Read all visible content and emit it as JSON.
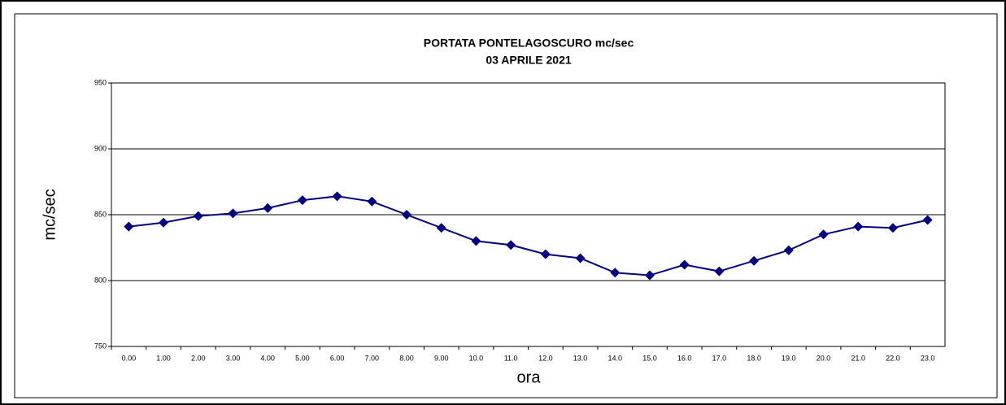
{
  "chart_data": {
    "type": "line",
    "title": "PORTATA PONTELAGOSCURO mc/sec",
    "subtitle": "03 APRILE 2021",
    "x_label": "ora",
    "y_label": "mc/sec",
    "categories": [
      "0.00",
      "1.00",
      "2.00",
      "3.00",
      "4.00",
      "5.00",
      "6.00",
      "7.00",
      "8.00",
      "9.00",
      "10.0",
      "11.0",
      "12.0",
      "13.0",
      "14.0",
      "15.0",
      "16.0",
      "17.0",
      "18.0",
      "19.0",
      "20.0",
      "21.0",
      "22.0",
      "23.0"
    ],
    "values": [
      841,
      844,
      849,
      851,
      855,
      861,
      864,
      860,
      850,
      840,
      830,
      827,
      820,
      817,
      806,
      804,
      812,
      807,
      815,
      823,
      835,
      841,
      840,
      846
    ],
    "color": "#000080",
    "ylim": [
      750,
      950
    ],
    "yticks": [
      750,
      800,
      850,
      900,
      950
    ],
    "grid": true
  }
}
